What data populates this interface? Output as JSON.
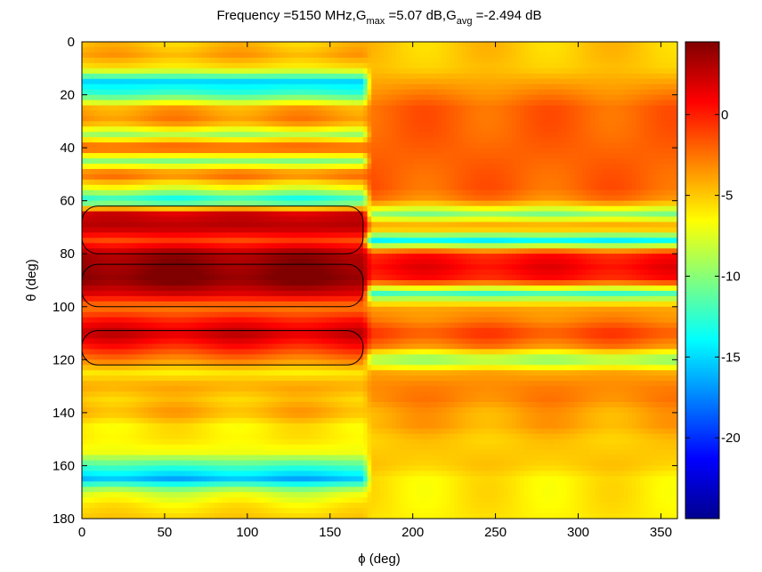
{
  "chart_data": {
    "type": "heatmap",
    "title_parts": {
      "prefix": "Frequency =5150 MHz,G",
      "sub1": "max",
      "mid": " =5.07 dB,G",
      "sub2": "avg",
      "suffix": " =-2.494 dB"
    },
    "xlabel": "ϕ (deg)",
    "ylabel": "θ (deg)",
    "xlim": [
      0,
      360
    ],
    "ylim": [
      0,
      180
    ],
    "y_reversed": true,
    "x_ticks": [
      0,
      50,
      100,
      150,
      200,
      250,
      300,
      350
    ],
    "y_ticks": [
      0,
      20,
      40,
      60,
      80,
      100,
      120,
      140,
      160,
      180
    ],
    "colorbar": {
      "colormap": "jet",
      "clim": [
        -25,
        4.5
      ],
      "ticks": [
        0,
        -5,
        -10,
        -15,
        -20
      ]
    },
    "contour_level_db": 2,
    "gain_summary": {
      "frequency_mhz": 5150,
      "g_max_db": 5.07,
      "g_avg_db": -2.494
    },
    "theta_grid": [
      0,
      5,
      10,
      15,
      20,
      25,
      30,
      35,
      40,
      45,
      50,
      55,
      60,
      65,
      70,
      75,
      80,
      85,
      90,
      95,
      100,
      105,
      110,
      115,
      120,
      125,
      130,
      135,
      140,
      145,
      150,
      155,
      160,
      165,
      170,
      175,
      180
    ],
    "phi_grid": [
      0,
      10,
      20,
      30,
      40,
      50,
      60,
      70,
      80,
      90,
      100,
      110,
      120,
      130,
      140,
      150,
      160,
      170,
      180,
      190,
      200,
      210,
      220,
      230,
      240,
      250,
      260,
      270,
      280,
      290,
      300,
      310,
      320,
      330,
      340,
      350,
      360
    ],
    "region_left_phi": [
      0,
      170
    ],
    "region_right_phi": [
      175,
      360
    ],
    "profile_left_db": [
      -5,
      -4,
      -6,
      -15,
      -12,
      -4,
      -3,
      -9,
      -1,
      -10,
      -2,
      -7,
      -14,
      2,
      3,
      -1,
      3.5,
      4,
      4.5,
      2,
      -3,
      0,
      2.5,
      0,
      -3,
      -6,
      -4,
      -5,
      -4,
      -6,
      -6,
      -7,
      -12,
      -16,
      -8,
      -6,
      -5
    ],
    "profile_right_db": [
      -5,
      -5,
      -5,
      -4,
      -3,
      -2,
      -2,
      -2,
      -2,
      -2,
      -2,
      -2,
      -3,
      -10,
      -3,
      -14,
      0,
      1,
      0,
      -12,
      -4,
      -3,
      -1,
      -3,
      -10,
      -4,
      -3,
      -3,
      -4,
      -4,
      -5,
      -5,
      -5,
      -6,
      -6,
      -6,
      -6
    ]
  }
}
